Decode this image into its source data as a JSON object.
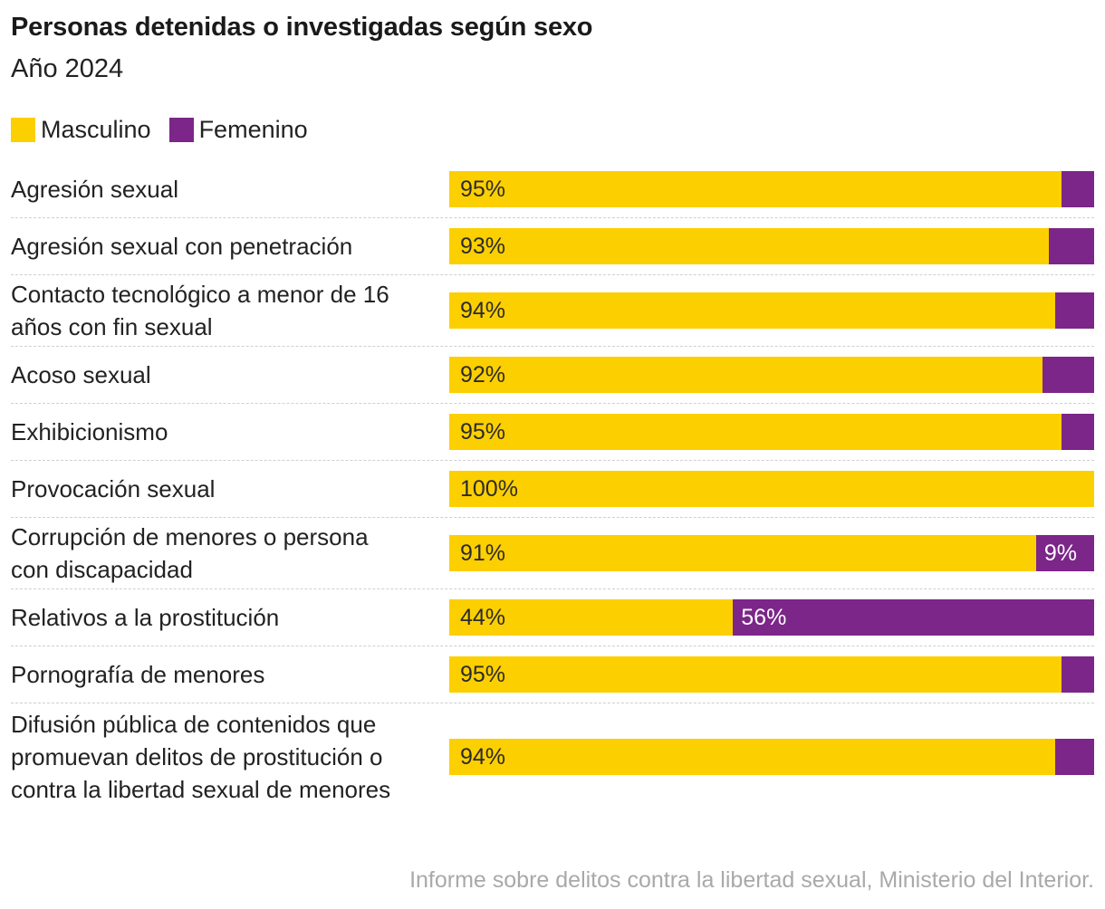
{
  "title": "Personas detenidas o investigadas según sexo",
  "subtitle": "Año 2024",
  "source": "Informe sobre delitos contra la libertad sexual, Ministerio del Interior.",
  "colors": {
    "masculino": "#fccf00",
    "femenino": "#7b2688"
  },
  "chart_data": {
    "type": "bar",
    "orientation": "horizontal",
    "stacked": true,
    "normalized": true,
    "title": "Personas detenidas o investigadas según sexo",
    "subtitle": "Año 2024",
    "legend": [
      "Masculino",
      "Femenino"
    ],
    "xlim": [
      0,
      100
    ],
    "categories": [
      "Agresión sexual",
      "Agresión sexual con penetración",
      "Contacto tecnológico a menor de 16 años con fin sexual",
      "Acoso sexual",
      "Exhibicionismo",
      "Provocación sexual",
      "Corrupción de menores o persona con discapacidad",
      "Relativos a la prostitución",
      "Pornografía de menores",
      "Difusión pública de contenidos que promuevan delitos de prostitución o contra la libertad sexual de menores"
    ],
    "series": [
      {
        "name": "Masculino",
        "values": [
          95,
          93,
          94,
          92,
          95,
          100,
          91,
          44,
          95,
          94
        ]
      },
      {
        "name": "Femenino",
        "values": [
          5,
          7,
          6,
          8,
          5,
          0,
          9,
          56,
          5,
          6
        ]
      }
    ],
    "data_labels": {
      "Masculino": [
        "95%",
        "93%",
        "94%",
        "92%",
        "95%",
        "100%",
        "91%",
        "44%",
        "95%",
        "94%"
      ],
      "Femenino": [
        null,
        null,
        null,
        null,
        null,
        null,
        "9%",
        "56%",
        null,
        null
      ]
    },
    "label_lines": [
      [
        "Agresión sexual"
      ],
      [
        "Agresión sexual con penetración"
      ],
      [
        "Contacto tecnológico a menor de 16",
        "años con fin sexual"
      ],
      [
        "Acoso sexual"
      ],
      [
        "Exhibicionismo"
      ],
      [
        "Provocación sexual"
      ],
      [
        "Corrupción de menores o persona",
        "con discapacidad"
      ],
      [
        "Relativos a la prostitución"
      ],
      [
        "Pornografía de menores"
      ],
      [
        "Difusión pública de contenidos que",
        "promuevan delitos de prostitución o",
        "contra la libertad sexual de menores"
      ]
    ]
  },
  "legend_items": [
    {
      "label": "Masculino",
      "color": "#fccf00"
    },
    {
      "label": "Femenino",
      "color": "#7b2688"
    }
  ]
}
